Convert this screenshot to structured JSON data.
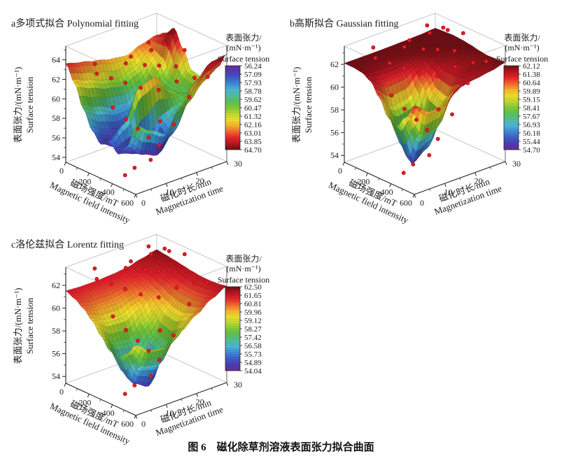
{
  "page": {
    "background": "#ffffff",
    "caption": "图 6　磁化除草剂溶液表面张力拟合曲面"
  },
  "shared": {
    "surface_colormap_stops": [
      [
        0.0,
        "#6a2c9e"
      ],
      [
        0.08,
        "#4a3fb4"
      ],
      [
        0.16,
        "#3a66cc"
      ],
      [
        0.24,
        "#3f9bdc"
      ],
      [
        0.31,
        "#54c3d4"
      ],
      [
        0.38,
        "#4fbf7e"
      ],
      [
        0.46,
        "#63c23d"
      ],
      [
        0.54,
        "#9ed32f"
      ],
      [
        0.6,
        "#d9e02f"
      ],
      [
        0.66,
        "#f6df2d"
      ],
      [
        0.72,
        "#f7ad2c"
      ],
      [
        0.79,
        "#f2642e"
      ],
      [
        0.86,
        "#e5212b"
      ],
      [
        0.93,
        "#b5151f"
      ],
      [
        1.0,
        "#6f0e14"
      ]
    ],
    "scatter": {
      "color": "#e81c24",
      "edge_color": "#8f0d12",
      "points": [
        [
          60,
          25,
          63.3
        ],
        [
          120,
          28,
          63.1
        ],
        [
          160,
          22,
          63.4
        ],
        [
          210,
          26,
          63.5
        ],
        [
          265,
          29,
          63.2
        ],
        [
          90,
          18,
          62.8
        ],
        [
          150,
          14,
          62.9
        ],
        [
          210,
          18,
          62.6
        ],
        [
          280,
          20,
          62.7
        ],
        [
          320,
          24,
          62.4
        ],
        [
          40,
          8,
          62.9
        ],
        [
          110,
          6,
          62.5
        ],
        [
          180,
          8,
          62.2
        ],
        [
          250,
          10,
          61.9
        ],
        [
          330,
          12,
          61.6
        ],
        [
          380,
          16,
          61.2
        ],
        [
          430,
          20,
          61.9
        ],
        [
          480,
          24,
          62.1
        ],
        [
          540,
          26,
          62.3
        ],
        [
          590,
          18,
          61.4
        ],
        [
          300,
          4,
          60.3
        ],
        [
          360,
          6,
          59.2
        ],
        [
          410,
          8,
          58.3
        ],
        [
          450,
          10,
          57.4
        ],
        [
          490,
          12,
          56.6
        ],
        [
          520,
          8,
          55.7
        ],
        [
          460,
          5,
          54.9
        ],
        [
          430,
          3,
          54.2
        ],
        [
          560,
          14,
          58.9
        ],
        [
          600,
          8,
          60.1
        ]
      ]
    }
  },
  "chart_data": [
    {
      "id": "a",
      "type": "surface3d",
      "title": "a多项式拟合 Polynomial fitting",
      "x_axis": {
        "label_cn": "磁场强度/mT",
        "label_en": "Magnetic field intensity",
        "min": 0,
        "max": 600,
        "ticks": [
          0,
          200,
          400,
          600
        ],
        "minor_step": 100
      },
      "y_axis": {
        "label_cn": "磁化时长/min",
        "label_en": "Magnetization time",
        "min": 0,
        "max": 30,
        "ticks": [
          0,
          10,
          20,
          30
        ],
        "minor_step": 5
      },
      "z_axis": {
        "label_cn": "表面张力/(mN·m⁻¹)",
        "label_en": "Surface tension",
        "min": 53.5,
        "max": 65.4,
        "ticks": [
          54,
          56,
          58,
          60,
          62,
          64
        ],
        "minor_step": 1
      },
      "colorbar": {
        "title_lines": [
          "表面张力/",
          "(mN·m⁻¹)",
          "Surface tension"
        ],
        "tick_labels": [
          "56.24",
          "57.09",
          "57.93",
          "58.78",
          "59.62",
          "60.47",
          "61.32",
          "62.16",
          "63.01",
          "63.85",
          "64.70"
        ],
        "vmin": 56.24,
        "vmax": 64.7,
        "high_value_at_top": false
      },
      "surface_grid": {
        "x": [
          0,
          75,
          150,
          225,
          300,
          375,
          450,
          525,
          600
        ],
        "y": [
          0,
          5,
          10,
          15,
          20,
          25,
          30
        ],
        "z": [
          [
            63.6,
            62.0,
            59.8,
            58.0,
            57.0,
            57.6,
            56.8,
            58.0,
            60.5
          ],
          [
            63.2,
            61.4,
            59.0,
            57.2,
            56.2,
            59.0,
            56.4,
            56.6,
            59.5
          ],
          [
            62.8,
            60.8,
            58.4,
            56.8,
            57.6,
            62.2,
            56.2,
            56.0,
            58.6
          ],
          [
            62.4,
            60.4,
            58.4,
            57.6,
            59.0,
            62.6,
            58.4,
            57.6,
            60.8
          ],
          [
            62.2,
            61.0,
            59.6,
            58.8,
            59.6,
            60.6,
            59.4,
            60.2,
            63.0
          ],
          [
            62.8,
            62.2,
            61.6,
            60.2,
            60.0,
            59.8,
            60.6,
            61.8,
            64.3
          ],
          [
            63.2,
            63.8,
            64.7,
            63.0,
            61.2,
            61.0,
            61.8,
            62.8,
            64.5
          ]
        ]
      },
      "points": "shared"
    },
    {
      "id": "b",
      "type": "surface3d",
      "title": "b高斯拟合 Gaussian fitting",
      "x_axis": {
        "label_cn": "磁场强度/mT",
        "label_en": "Magnetic field intensity",
        "min": 0,
        "max": 600,
        "ticks": [
          0,
          200,
          400,
          600
        ],
        "minor_step": 100
      },
      "y_axis": {
        "label_cn": "磁化时长/min",
        "label_en": "Magnetization time",
        "min": 0,
        "max": 30,
        "ticks": [
          0,
          10,
          20,
          30
        ],
        "minor_step": 5
      },
      "z_axis": {
        "label_cn": "表面张力/(mN·m⁻¹)",
        "label_en": "Surface tension",
        "min": 53.4,
        "max": 63.6,
        "ticks": [
          54,
          56,
          58,
          60,
          62
        ],
        "minor_step": 1
      },
      "colorbar": {
        "title_lines": [
          "表面张力/",
          "(mN·m⁻¹)",
          "Surface tension"
        ],
        "tick_labels": [
          "62.12",
          "61.38",
          "60.64",
          "59.89",
          "59.15",
          "58.41",
          "57.67",
          "56.93",
          "56.18",
          "55.44",
          "54.70"
        ],
        "vmin": 54.7,
        "vmax": 62.12,
        "high_value_at_top": true
      },
      "surface_grid": {
        "x": [
          0,
          75,
          150,
          225,
          300,
          375,
          450,
          525,
          600
        ],
        "y": [
          0,
          5,
          10,
          15,
          20,
          25,
          30
        ],
        "z": [
          [
            62.1,
            62.09,
            61.99,
            61.57,
            60.48,
            59.09,
            58.72,
            59.79,
            61.15
          ],
          [
            62.1,
            62.07,
            61.89,
            61.03,
            58.82,
            56.03,
            54.9,
            57.44,
            60.18
          ],
          [
            62.1,
            62.08,
            61.9,
            61.11,
            59.06,
            56.48,
            55.79,
            57.79,
            60.32
          ],
          [
            62.12,
            62.09,
            62.02,
            61.68,
            60.81,
            59.72,
            59.43,
            60.28,
            61.35
          ],
          [
            62.15,
            62.12,
            62.08,
            62.02,
            61.85,
            61.64,
            61.58,
            61.75,
            61.6
          ],
          [
            62.2,
            62.18,
            62.15,
            62.1,
            62.0,
            61.9,
            61.85,
            61.9,
            61.8
          ],
          [
            62.3,
            62.35,
            62.4,
            62.35,
            62.25,
            62.1,
            62.0,
            62.05,
            62.1
          ]
        ]
      },
      "points": "shared"
    },
    {
      "id": "c",
      "type": "surface3d",
      "title": "c洛伦兹拟合 Lorentz fitting",
      "x_axis": {
        "label_cn": "磁场强度/mT",
        "label_en": "Magnetic field intensity",
        "min": 0,
        "max": 600,
        "ticks": [
          0,
          200,
          400,
          600
        ],
        "minor_step": 100
      },
      "y_axis": {
        "label_cn": "磁化时长/min",
        "label_en": "Magnetization time",
        "min": 0,
        "max": 30,
        "ticks": [
          0,
          10,
          20,
          30
        ],
        "minor_step": 5
      },
      "z_axis": {
        "label_cn": "表面张力/(mN·m⁻¹)",
        "label_en": "Surface tension",
        "min": 53.4,
        "max": 63.6,
        "ticks": [
          54,
          56,
          58,
          60,
          62
        ],
        "minor_step": 1
      },
      "colorbar": {
        "title_lines": [
          "表面张力/",
          "(mN·m⁻¹)",
          "Surface tension"
        ],
        "tick_labels": [
          "62.50",
          "61.65",
          "60.81",
          "59.96",
          "59.12",
          "58.27",
          "57.42",
          "56.58",
          "55.73",
          "54.89",
          "54.04"
        ],
        "vmin": 54.04,
        "vmax": 62.5,
        "high_value_at_top": true
      },
      "surface_grid": {
        "x": [
          0,
          75,
          150,
          225,
          300,
          375,
          450,
          525,
          600
        ],
        "y": [
          0,
          5,
          10,
          15,
          20,
          25,
          30
        ],
        "z": [
          [
            61.51,
            61.18,
            60.69,
            59.96,
            58.99,
            58.05,
            57.8,
            58.51,
            59.53
          ],
          [
            61.43,
            61.03,
            60.38,
            59.31,
            57.62,
            55.58,
            54.99,
            56.63,
            58.6
          ],
          [
            61.42,
            61.01,
            60.35,
            59.24,
            57.43,
            55.21,
            54.3,
            56.37,
            58.49
          ],
          [
            61.49,
            61.14,
            60.61,
            59.81,
            58.7,
            57.57,
            57.28,
            58.13,
            59.33
          ],
          [
            61.62,
            61.36,
            61.0,
            60.54,
            59.98,
            59.57,
            59.48,
            59.78,
            60.3
          ],
          [
            61.95,
            61.78,
            61.58,
            61.35,
            61.07,
            60.9,
            60.86,
            60.98,
            61.22
          ],
          [
            62.26,
            62.16,
            62.05,
            61.92,
            61.79,
            61.7,
            61.68,
            61.74,
            61.87
          ]
        ]
      },
      "points": "shared"
    }
  ]
}
